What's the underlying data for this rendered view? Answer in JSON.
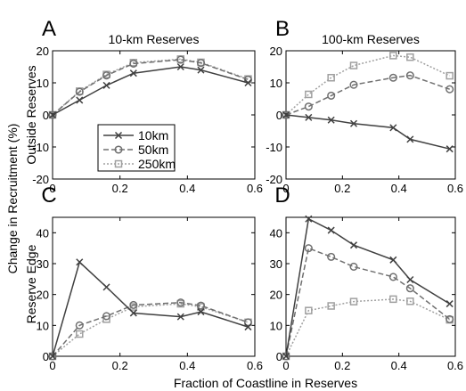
{
  "figure": {
    "xlabel": "Fraction of Coastline in Reserves",
    "ylabel": "Change in Recruitment (%)",
    "row_labels": [
      "Outside Reserves",
      "Reserve Edge"
    ],
    "col_titles": [
      "10-km Reserves",
      "100-km Reserves"
    ]
  },
  "legend": {
    "entries": [
      {
        "label": "10km",
        "marker": "x",
        "dash": "solid",
        "color": "#404040"
      },
      {
        "label": "50km",
        "marker": "circle",
        "dash": "dashed",
        "color": "#707070"
      },
      {
        "label": "250km",
        "marker": "square",
        "dash": "dotted",
        "color": "#a0a0a0"
      }
    ]
  },
  "chart_data": [
    {
      "panel": "A",
      "type": "line",
      "title": "10-km Reserves",
      "xlim": [
        0,
        0.6
      ],
      "ylim": [
        -20,
        20
      ],
      "xticks": [
        "0",
        "0.2",
        "0.4",
        "0.6"
      ],
      "yticks": [
        "-20",
        "-10",
        "0",
        "10",
        "20"
      ],
      "x": [
        0,
        0.08,
        0.16,
        0.24,
        0.38,
        0.44,
        0.58
      ],
      "series": [
        {
          "name": "10km",
          "values": [
            0,
            4.6,
            9.2,
            13,
            15,
            14,
            10
          ]
        },
        {
          "name": "50km",
          "values": [
            0,
            7.2,
            12.3,
            16,
            17.2,
            16.2,
            11
          ]
        },
        {
          "name": "250km",
          "values": [
            0,
            7.4,
            12.6,
            16.3,
            17.4,
            16.4,
            11.2
          ]
        }
      ]
    },
    {
      "panel": "B",
      "type": "line",
      "title": "100-km Reserves",
      "xlim": [
        0,
        0.6
      ],
      "ylim": [
        -20,
        20
      ],
      "xticks": [
        "0",
        "0.2",
        "0.4",
        "0.6"
      ],
      "yticks": [
        "-20",
        "-10",
        "0",
        "10",
        "20"
      ],
      "x": [
        0,
        0.08,
        0.16,
        0.24,
        0.38,
        0.44,
        0.58
      ],
      "series": [
        {
          "name": "10km",
          "values": [
            0,
            -0.8,
            -1.6,
            -2.7,
            -4,
            -7.6,
            -10.6
          ]
        },
        {
          "name": "50km",
          "values": [
            0,
            2.6,
            6,
            9.4,
            11.6,
            12.3,
            8
          ]
        },
        {
          "name": "250km",
          "values": [
            0,
            6.4,
            11.6,
            15.4,
            18.5,
            18,
            12.2
          ]
        }
      ]
    },
    {
      "panel": "C",
      "type": "line",
      "title": "",
      "xlim": [
        0,
        0.6
      ],
      "ylim": [
        0,
        45
      ],
      "xticks": [
        "0",
        "0.2",
        "0.4",
        "0.6"
      ],
      "yticks": [
        "0",
        "10",
        "20",
        "30",
        "40"
      ],
      "x": [
        0,
        0.08,
        0.16,
        0.24,
        0.38,
        0.44,
        0.58
      ],
      "series": [
        {
          "name": "10km",
          "values": [
            0,
            30.5,
            22.4,
            14,
            12.8,
            14.4,
            9.5
          ]
        },
        {
          "name": "50km",
          "values": [
            0,
            10,
            13,
            16.6,
            17.4,
            16.4,
            11
          ]
        },
        {
          "name": "250km",
          "values": [
            0,
            7.2,
            12,
            16,
            17,
            16,
            11
          ]
        }
      ]
    },
    {
      "panel": "D",
      "type": "line",
      "title": "",
      "xlim": [
        0,
        0.6
      ],
      "ylim": [
        0,
        45
      ],
      "xticks": [
        "0",
        "0.2",
        "0.4",
        "0.6"
      ],
      "yticks": [
        "0",
        "10",
        "20",
        "30",
        "40"
      ],
      "x": [
        0,
        0.08,
        0.16,
        0.24,
        0.38,
        0.44,
        0.58
      ],
      "series": [
        {
          "name": "10km",
          "values": [
            0,
            44.5,
            40.8,
            36,
            31.2,
            24.8,
            17
          ]
        },
        {
          "name": "50km",
          "values": [
            0,
            35,
            32.2,
            29,
            25.7,
            22,
            12
          ]
        },
        {
          "name": "250km",
          "values": [
            0,
            14.8,
            16.3,
            17.7,
            18.5,
            17.8,
            11.8
          ]
        }
      ]
    }
  ]
}
